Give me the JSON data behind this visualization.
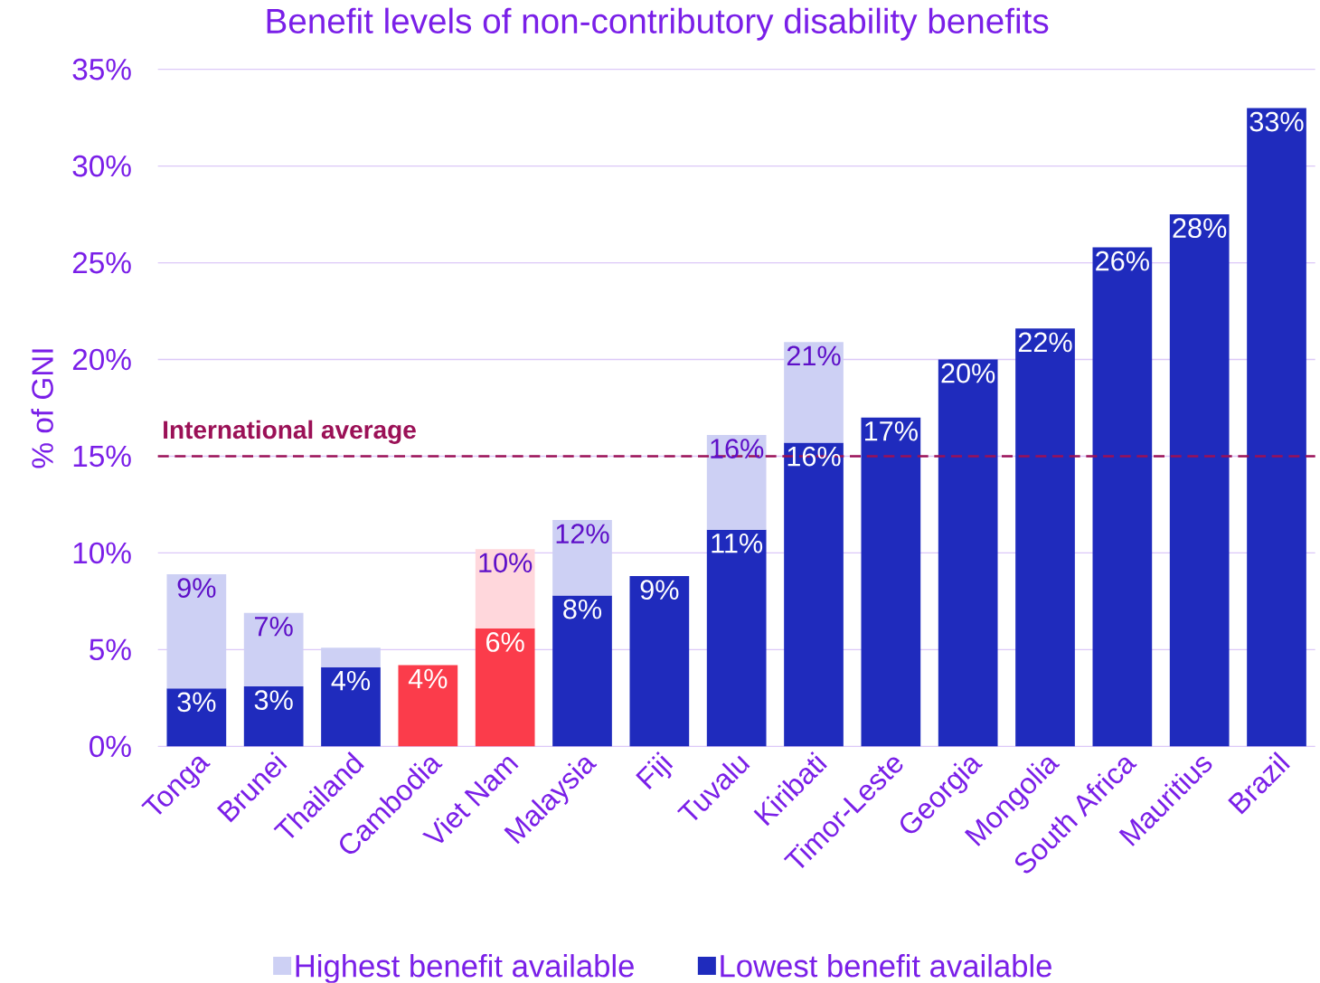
{
  "chart_data": {
    "type": "bar",
    "title": "Benefit levels of non-contributory disability benefits",
    "ylabel": "% of GNI",
    "categories": [
      "Tonga",
      "Brunei",
      "Thailand",
      "Cambodia",
      "Viet Nam",
      "Malaysia",
      "Fiji",
      "Tuvalu",
      "Kiribati",
      "Timor-Leste",
      "Georgia",
      "Mongolia",
      "South Africa",
      "Mauritius",
      "Brazil"
    ],
    "stacked": true,
    "series": [
      {
        "name": "Lowest benefit available",
        "color": "#1f2bbd",
        "colors": [
          "#1f2bbd",
          "#1f2bbd",
          "#1f2bbd",
          "#fb3c4b",
          "#fb3c4b",
          "#1f2bbd",
          "#1f2bbd",
          "#1f2bbd",
          "#1f2bbd",
          "#1f2bbd",
          "#1f2bbd",
          "#1f2bbd",
          "#1f2bbd",
          "#1f2bbd",
          "#1f2bbd"
        ],
        "values": [
          3.0,
          3.1,
          4.1,
          4.2,
          6.1,
          7.8,
          8.8,
          11.2,
          15.7,
          17.0,
          20.0,
          21.6,
          25.8,
          27.5,
          33.0
        ],
        "value_labels": [
          "3%",
          "3%",
          "4%",
          "4%",
          "6%",
          "8%",
          "9%",
          "11%",
          "16%",
          "17%",
          "20%",
          "22%",
          "26%",
          "28%",
          "33%"
        ]
      },
      {
        "name": "Highest benefit available",
        "color": "#cdd0f4",
        "colors": [
          "#cdd0f4",
          "#cdd0f4",
          "#cdd0f4",
          "#cdd0f4",
          "#ffd7dc",
          "#cdd0f4",
          "#cdd0f4",
          "#cdd0f4",
          "#cdd0f4",
          "#cdd0f4",
          "#cdd0f4",
          "#cdd0f4",
          "#cdd0f4",
          "#cdd0f4",
          "#cdd0f4"
        ],
        "values": [
          5.9,
          3.8,
          1.0,
          null,
          4.1,
          3.9,
          null,
          4.9,
          5.2,
          null,
          null,
          null,
          null,
          null,
          null
        ]
      }
    ],
    "totals": [
      "9%",
      "7%",
      null,
      null,
      "10%",
      "12%",
      null,
      "16%",
      "21%",
      null,
      null,
      null,
      null,
      null,
      null
    ],
    "ylim": [
      0,
      35
    ],
    "yticks": [
      {
        "value": 0,
        "label": "0%"
      },
      {
        "value": 5,
        "label": "5%"
      },
      {
        "value": 10,
        "label": "10%"
      },
      {
        "value": 15,
        "label": "15%"
      },
      {
        "value": 20,
        "label": "20%"
      },
      {
        "value": 25,
        "label": "25%"
      },
      {
        "value": 30,
        "label": "30%"
      },
      {
        "value": 35,
        "label": "35%"
      }
    ],
    "grid": "y",
    "legend": "bottom",
    "ref_lines": [
      {
        "axis": "y",
        "value": 15,
        "label": "International average",
        "color": "#9b1157",
        "line_style": "dashed"
      }
    ]
  }
}
